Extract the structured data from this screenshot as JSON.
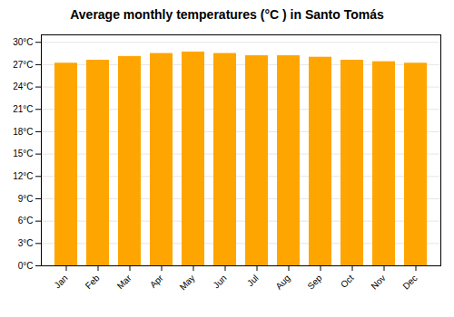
{
  "chart_data": {
    "type": "bar",
    "title": "Average monthly temperatures (°C ) in Santo Tomás",
    "categories": [
      "Jan",
      "Feb",
      "Mar",
      "Apr",
      "May",
      "Jun",
      "Jul",
      "Aug",
      "Sep",
      "Oct",
      "Nov",
      "Dec"
    ],
    "values": [
      27.2,
      27.6,
      28.1,
      28.5,
      28.7,
      28.5,
      28.2,
      28.2,
      28.0,
      27.6,
      27.4,
      27.2
    ],
    "color": "#FFA500",
    "ylim": [
      0,
      31
    ],
    "yticks": [
      {
        "value": 0,
        "label": "0°C"
      },
      {
        "value": 3,
        "label": "3°C"
      },
      {
        "value": 6,
        "label": "6°C"
      },
      {
        "value": 9,
        "label": "9°C"
      },
      {
        "value": 12,
        "label": "12°C"
      },
      {
        "value": 15,
        "label": "15°C"
      },
      {
        "value": 18,
        "label": "18°C"
      },
      {
        "value": 21,
        "label": "21°C"
      },
      {
        "value": 24,
        "label": "24°C"
      },
      {
        "value": 27,
        "label": "27°C"
      },
      {
        "value": 30,
        "label": "30°C"
      }
    ],
    "grid": true
  }
}
